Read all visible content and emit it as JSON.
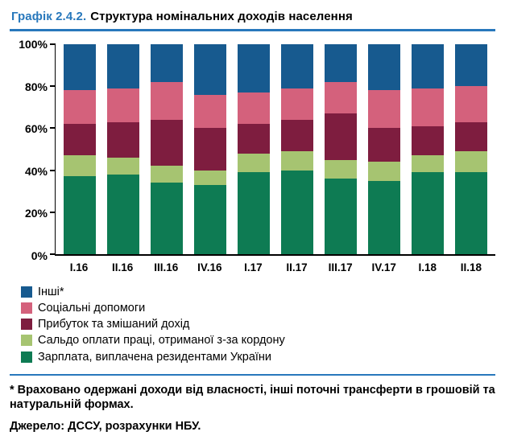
{
  "header": {
    "title_number": "Графік 2.4.2.",
    "title_text": "Структура номінальних доходів населення"
  },
  "chart_data": {
    "type": "bar",
    "stacked": true,
    "percent_stacked": true,
    "unit": "%",
    "grid": false,
    "legend_position": "bottom-left",
    "ylim": [
      0,
      100
    ],
    "yticks": [
      0,
      20,
      40,
      60,
      80,
      100
    ],
    "categories": [
      "I.16",
      "II.16",
      "III.16",
      "IV.16",
      "I.17",
      "II.17",
      "III.17",
      "IV.17",
      "I.18",
      "II.18"
    ],
    "series": [
      {
        "name": "Зарплата, виплачена резидентами України",
        "color": "#0E7B53",
        "values": [
          37,
          38,
          34,
          33,
          39,
          40,
          36,
          35,
          39,
          39
        ]
      },
      {
        "name": "Сальдо оплати праці, отриманої з-за кордону",
        "color": "#A6C471",
        "values": [
          10,
          8,
          8,
          7,
          9,
          9,
          9,
          9,
          8,
          10
        ]
      },
      {
        "name": "Прибуток та змішаний дохід",
        "color": "#7E1D3F",
        "values": [
          15,
          17,
          22,
          20,
          14,
          15,
          22,
          16,
          14,
          14
        ]
      },
      {
        "name": "Соціальні допомоги",
        "color": "#D4617C",
        "values": [
          16,
          16,
          18,
          16,
          15,
          15,
          15,
          18,
          18,
          17
        ]
      },
      {
        "name": "Інші*",
        "color": "#175A8F",
        "values": [
          22,
          21,
          18,
          24,
          23,
          21,
          18,
          22,
          21,
          20
        ]
      }
    ]
  },
  "footnote": "* Враховано одержані доходи від власності, інші поточні трансферти в грошовій та натуральній формах.",
  "source": "Джерело: ДССУ, розрахунки НБУ.",
  "colors": {
    "accent_blue": "#2878BC",
    "axis_black": "#000000"
  }
}
